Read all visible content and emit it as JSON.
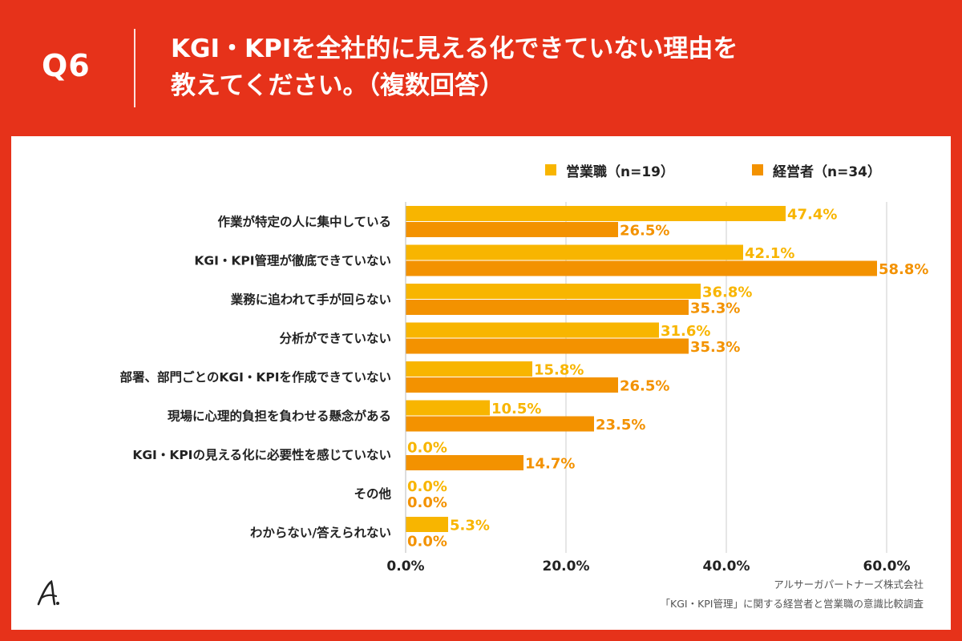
{
  "header": {
    "question": "Q6",
    "title_line1": "KGI・KPIを全社的に見える化できていない理由を",
    "title_line2": "教えてください。（複数回答）"
  },
  "legend": {
    "series1": "営業職（n=19）",
    "series2": "経営者（n=34）"
  },
  "colors": {
    "background": "#e6321a",
    "series1": "#f8b500",
    "series2": "#f39200",
    "grid": "#cccccc"
  },
  "chart_data": {
    "type": "bar",
    "orientation": "horizontal",
    "title": "KGI・KPIを全社的に見える化できていない理由を教えてください。（複数回答）",
    "categories": [
      "作業が特定の人に集中している",
      "KGI・KPI管理が徹底できていない",
      "業務に追われて手が回らない",
      "分析ができていない",
      "部署、部門ごとのKGI・KPIを作成できていない",
      "現場に心理的負担を負わせる懸念がある",
      "KGI・KPIの見える化に必要性を感じていない",
      "その他",
      "わからない/答えられない"
    ],
    "series": [
      {
        "name": "営業職（n=19）",
        "values": [
          47.4,
          42.1,
          36.8,
          31.6,
          15.8,
          10.5,
          0.0,
          0.0,
          5.3
        ]
      },
      {
        "name": "経営者（n=34）",
        "values": [
          26.5,
          58.8,
          35.3,
          35.3,
          26.5,
          23.5,
          14.7,
          0.0,
          0.0
        ]
      }
    ],
    "xlim": [
      0,
      60
    ],
    "xticks": [
      "0.0%",
      "20.0%",
      "40.0%",
      "60.0%"
    ],
    "xtick_values": [
      0,
      20,
      40,
      60
    ],
    "value_suffix": "%",
    "grid": true,
    "legend_position": "top-right"
  },
  "source": {
    "line1": "アルサーガパートナーズ株式会社",
    "line2": "「KGI・KPI管理」に関する経営者と営業職の意識比較調査"
  }
}
